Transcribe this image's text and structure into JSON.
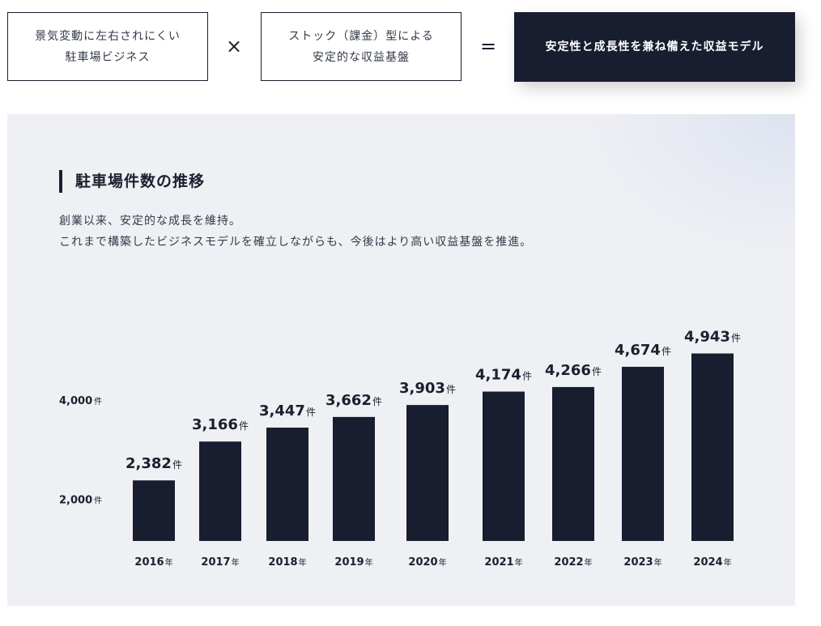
{
  "formula": {
    "box1": [
      "景気変動に左右されにくい",
      "駐車場ビジネス"
    ],
    "times": "×",
    "box2": [
      "ストック（課金）型による",
      "安定的な収益基盤"
    ],
    "equals": "=",
    "result": "安定性と成長性を兼ね備えた収益モデル"
  },
  "section": {
    "title": "駐車場件数の推移",
    "desc1": "創業以来、安定的な成長を維持。",
    "desc2": "これまで構築したビジネスモデルを確立しながらも、今後はより高い収益基盤を推進。"
  },
  "colors": {
    "bar": "#181d2f",
    "panel": "#eff0f4"
  },
  "chart_data": {
    "type": "bar",
    "title": "駐車場件数の推移",
    "categories": [
      "2016",
      "2017",
      "2018",
      "2019",
      "2020",
      "2021",
      "2022",
      "2023",
      "2024"
    ],
    "category_suffix": "年",
    "values": [
      2382,
      3166,
      3447,
      3662,
      3903,
      4174,
      4266,
      4674,
      4943
    ],
    "value_labels": [
      "2,382",
      "3,166",
      "3,447",
      "3,662",
      "3,903",
      "4,174",
      "4,266",
      "4,674",
      "4,943"
    ],
    "unit": "件",
    "yticks": [
      2000,
      4000
    ],
    "ytick_labels": [
      "2,000",
      "4,000"
    ],
    "grid": false,
    "legend": "none"
  }
}
